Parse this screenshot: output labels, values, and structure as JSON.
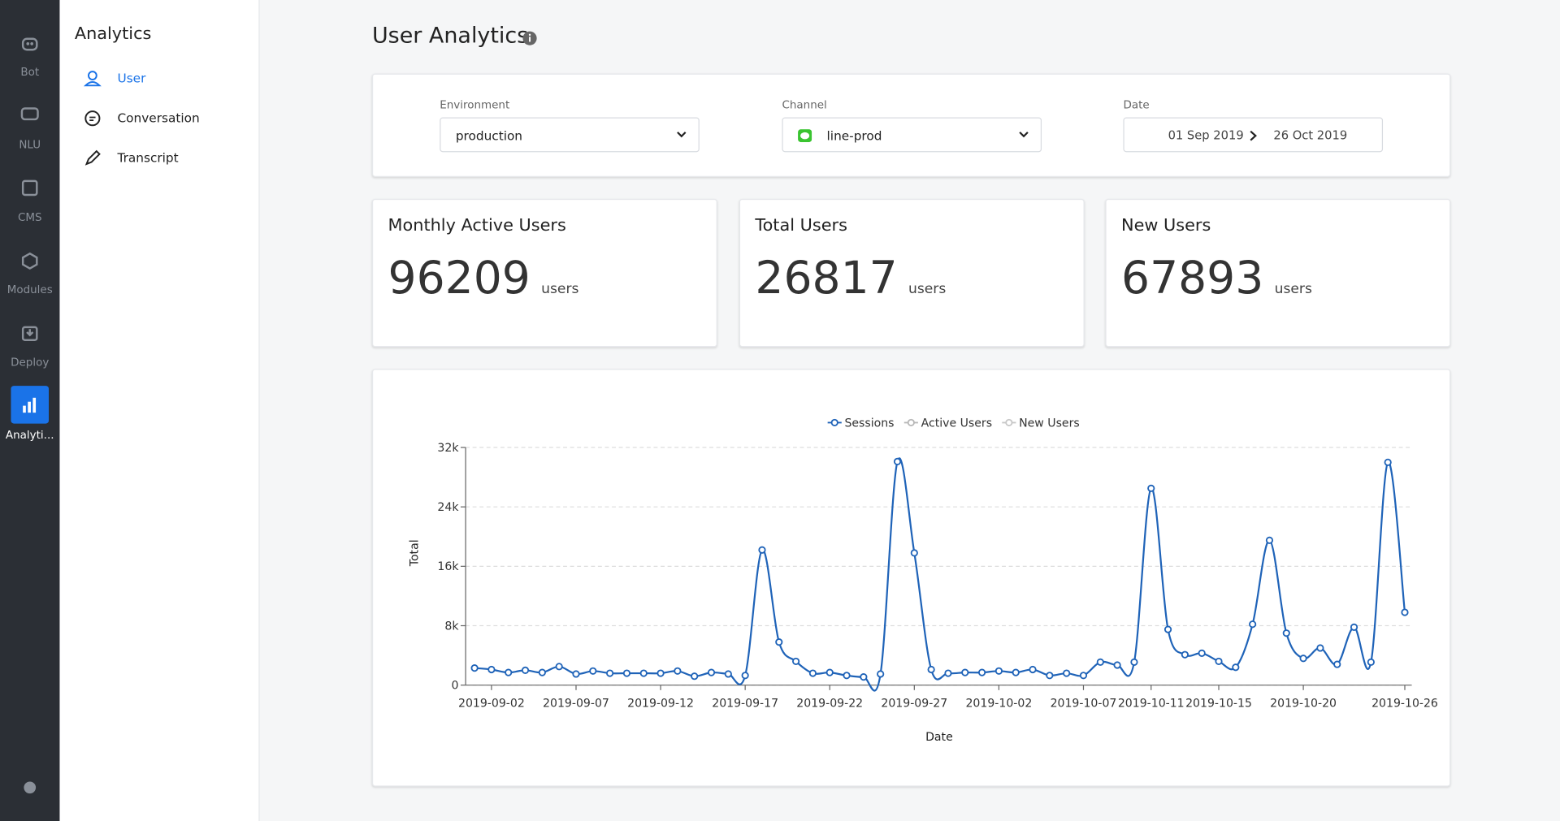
{
  "sidebar": {
    "items": [
      "Bot",
      "NLU",
      "CMS",
      "Modules",
      "Deploy",
      "Analyti..."
    ]
  },
  "nav": {
    "title": "Analytics",
    "items": [
      "User",
      "Conversation",
      "Transcript"
    ]
  },
  "header": {
    "title": "User Analytics"
  },
  "filters": {
    "environment": {
      "label": "Environment",
      "value": "production"
    },
    "channel": {
      "label": "Channel",
      "value": "line-prod"
    },
    "date": {
      "label": "Date",
      "from": "01 Sep 2019",
      "to": "26 Oct 2019"
    }
  },
  "stats": [
    {
      "title": "Monthly Active Users",
      "value": 96209,
      "unit": "users"
    },
    {
      "title": "Total Users",
      "value": 26817,
      "unit": "users"
    },
    {
      "title": "New Users",
      "value": 67893,
      "unit": "users"
    }
  ],
  "chart_data": {
    "type": "line",
    "xlabel": "Date",
    "ylabel": "Total",
    "x": [
      "2019-09-01",
      "2019-09-02",
      "2019-09-03",
      "2019-09-04",
      "2019-09-05",
      "2019-09-06",
      "2019-09-07",
      "2019-09-08",
      "2019-09-09",
      "2019-09-10",
      "2019-09-11",
      "2019-09-12",
      "2019-09-13",
      "2019-09-14",
      "2019-09-15",
      "2019-09-16",
      "2019-09-17",
      "2019-09-18",
      "2019-09-19",
      "2019-09-20",
      "2019-09-21",
      "2019-09-22",
      "2019-09-23",
      "2019-09-24",
      "2019-09-25",
      "2019-09-26",
      "2019-09-27",
      "2019-09-28",
      "2019-09-29",
      "2019-09-30",
      "2019-10-01",
      "2019-10-02",
      "2019-10-03",
      "2019-10-04",
      "2019-10-05",
      "2019-10-06",
      "2019-10-07",
      "2019-10-08",
      "2019-10-09",
      "2019-10-10",
      "2019-10-11",
      "2019-10-12",
      "2019-10-13",
      "2019-10-14",
      "2019-10-15",
      "2019-10-16",
      "2019-10-17",
      "2019-10-18",
      "2019-10-19",
      "2019-10-20",
      "2019-10-21",
      "2019-10-22",
      "2019-10-23",
      "2019-10-24",
      "2019-10-25",
      "2019-10-26"
    ],
    "series": [
      {
        "name": "Sessions",
        "color": "#1f63b8",
        "values": [
          2300,
          2100,
          1700,
          2000,
          1700,
          2500,
          1500,
          1900,
          1600,
          1600,
          1600,
          1600,
          1900,
          1200,
          1700,
          1500,
          1300,
          18200,
          5800,
          3200,
          1600,
          1700,
          1300,
          1100,
          1500,
          30100,
          17800,
          2100,
          1600,
          1700,
          1700,
          1900,
          1700,
          2100,
          1300,
          1600,
          1300,
          3100,
          2700,
          3100,
          26500,
          7500,
          4100,
          4300,
          3200,
          2400,
          8200,
          19500,
          7000,
          3600,
          5000,
          2800,
          7800,
          3100,
          30000,
          9800
        ]
      },
      {
        "name": "Active Users",
        "color": "#b8b8b8"
      },
      {
        "name": "New Users",
        "color": "#c8c8c8"
      }
    ],
    "xticks": [
      "2019-09-02",
      "2019-09-07",
      "2019-09-12",
      "2019-09-17",
      "2019-09-22",
      "2019-09-27",
      "2019-10-02",
      "2019-10-07",
      "2019-10-11",
      "2019-10-15",
      "2019-10-20",
      "2019-10-26"
    ],
    "ylim": [
      0,
      32000
    ],
    "yticks": [
      0,
      {
        "value": 8000,
        "label": "8k"
      },
      {
        "value": 16000,
        "label": "16k"
      },
      {
        "value": 24000,
        "label": "24k"
      },
      {
        "value": 32000,
        "label": "32k"
      }
    ],
    "grid": true,
    "legend": "top"
  }
}
